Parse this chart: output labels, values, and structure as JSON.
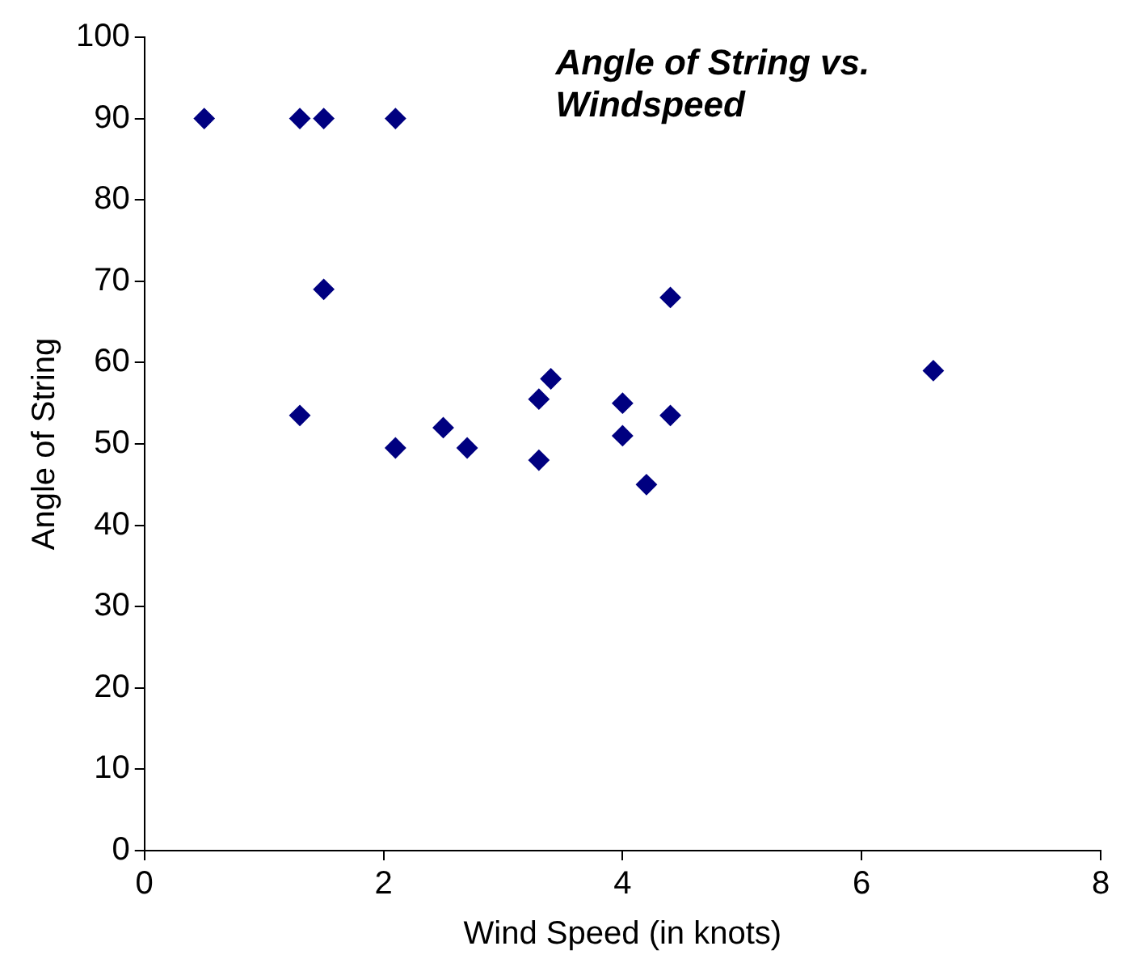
{
  "chart_data": {
    "type": "scatter",
    "title": "Angle of String vs. Windspeed",
    "xlabel": "Wind Speed (in knots)",
    "ylabel": "Angle of String",
    "x": [
      0.5,
      1.3,
      1.5,
      2.1,
      1.5,
      1.3,
      2.1,
      2.5,
      2.7,
      3.3,
      3.3,
      3.4,
      4.0,
      4.0,
      4.2,
      4.4,
      4.4,
      6.6
    ],
    "series": [
      {
        "color": "#000080",
        "values": [
          90,
          90,
          90,
          90,
          69,
          53.5,
          49.5,
          52,
          49.5,
          48,
          55.5,
          58,
          55,
          51,
          45,
          53.5,
          68,
          59
        ]
      }
    ],
    "xlim": [
      0,
      8
    ],
    "xticks": [
      0,
      2,
      4,
      6,
      8
    ],
    "ylim": [
      0,
      100
    ],
    "yticks": [
      0,
      10,
      20,
      30,
      40,
      50,
      60,
      70,
      80,
      90,
      100
    ],
    "grid": false,
    "legend": false,
    "marker": "diamond"
  }
}
